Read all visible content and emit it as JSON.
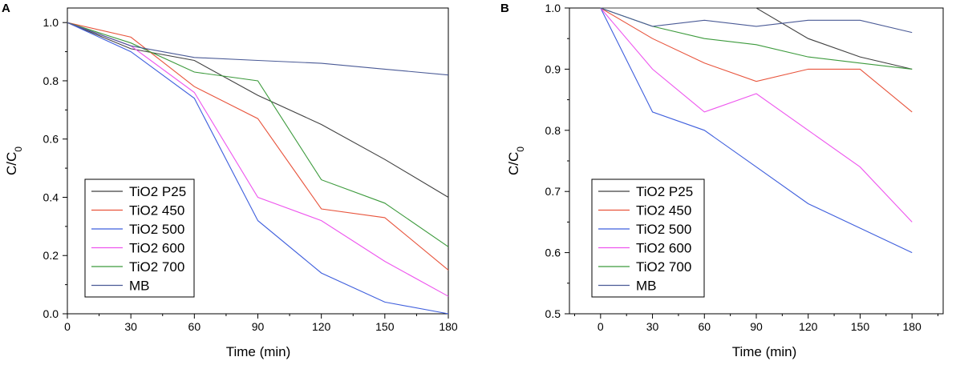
{
  "chart_data": [
    {
      "panel_label": "A",
      "type": "line",
      "xlabel": "Time (min)",
      "ylabel": "C/C",
      "ylabel_sub": "0",
      "x": [
        0,
        30,
        60,
        90,
        120,
        150,
        180
      ],
      "x_ticks": [
        "0",
        "30",
        "60",
        "90",
        "120",
        "150",
        "180"
      ],
      "xlim": [
        0,
        180
      ],
      "ylim": [
        0,
        1.05
      ],
      "y_ticks": [
        0.0,
        0.2,
        0.4,
        0.6,
        0.8,
        1.0
      ],
      "y_tick_labels": [
        "0.0",
        "0.2",
        "0.4",
        "0.6",
        "0.8",
        "1.0"
      ],
      "legend_position": "bottom-left",
      "series": [
        {
          "name": "TiO2 P25",
          "color": "#404040",
          "values": [
            1.0,
            0.91,
            0.87,
            0.75,
            0.65,
            0.53,
            0.4
          ]
        },
        {
          "name": "TiO2 450",
          "color": "#e8543c",
          "values": [
            1.0,
            0.95,
            0.78,
            0.67,
            0.36,
            0.33,
            0.15
          ]
        },
        {
          "name": "TiO2 500",
          "color": "#3f5fdd",
          "values": [
            1.0,
            0.9,
            0.74,
            0.32,
            0.14,
            0.04,
            0.0
          ]
        },
        {
          "name": "TiO2 600",
          "color": "#ee55ee",
          "values": [
            1.0,
            0.92,
            0.76,
            0.4,
            0.32,
            0.18,
            0.06
          ]
        },
        {
          "name": "TiO2 700",
          "color": "#3c9a3c",
          "values": [
            1.0,
            0.93,
            0.83,
            0.8,
            0.46,
            0.38,
            0.23
          ]
        },
        {
          "name": "MB",
          "color": "#4a5a96",
          "values": [
            1.0,
            0.92,
            0.88,
            0.87,
            0.86,
            0.84,
            0.82
          ]
        }
      ]
    },
    {
      "panel_label": "B",
      "type": "line",
      "xlabel": "Time (min)",
      "ylabel": "C/C",
      "ylabel_sub": "0",
      "x": [
        0,
        30,
        60,
        90,
        120,
        150,
        180
      ],
      "x_ticks": [
        "0",
        "30",
        "60",
        "90",
        "120",
        "150",
        "180"
      ],
      "xlim": [
        -18,
        198
      ],
      "ylim": [
        0.5,
        1.0
      ],
      "y_ticks": [
        0.5,
        0.6,
        0.7,
        0.8,
        0.9,
        1.0
      ],
      "y_tick_labels": [
        "0.5",
        "0.6",
        "0.7",
        "0.8",
        "0.9",
        "1.0"
      ],
      "legend_position": "bottom-left",
      "series": [
        {
          "name": "TiO2 P25",
          "color": "#404040",
          "values": [
            1.0,
            1.0,
            1.0,
            1.0,
            0.95,
            0.92,
            0.9
          ]
        },
        {
          "name": "TiO2 450",
          "color": "#e8543c",
          "values": [
            1.0,
            0.95,
            0.91,
            0.88,
            0.9,
            0.9,
            0.83
          ]
        },
        {
          "name": "TiO2 500",
          "color": "#3f5fdd",
          "values": [
            1.0,
            0.83,
            0.8,
            0.74,
            0.68,
            0.64,
            0.6
          ]
        },
        {
          "name": "TiO2 600",
          "color": "#ee55ee",
          "values": [
            1.0,
            0.9,
            0.83,
            0.86,
            0.8,
            0.74,
            0.65
          ]
        },
        {
          "name": "TiO2 700",
          "color": "#3c9a3c",
          "values": [
            1.0,
            0.97,
            0.95,
            0.94,
            0.92,
            0.91,
            0.9
          ]
        },
        {
          "name": "MB",
          "color": "#4a5a96",
          "values": [
            1.0,
            0.97,
            0.98,
            0.97,
            0.98,
            0.98,
            0.96
          ]
        }
      ]
    }
  ]
}
